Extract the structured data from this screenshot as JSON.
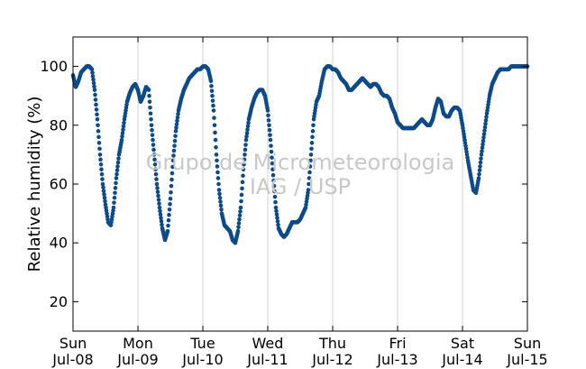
{
  "chart_data": {
    "type": "scatter",
    "title": "",
    "xlabel": "",
    "ylabel": "Relative humidity (%)",
    "ylim": [
      10,
      110
    ],
    "xlim": [
      "2013-07-08 00:00",
      "2013-07-15 00:00"
    ],
    "yticks": [
      20,
      40,
      60,
      80,
      100
    ],
    "xticks": [
      {
        "date": "2013-07-08",
        "day": "Sun",
        "label": "Jul-08"
      },
      {
        "date": "2013-07-09",
        "day": "Mon",
        "label": "Jul-09"
      },
      {
        "date": "2013-07-10",
        "day": "Tue",
        "label": "Jul-10"
      },
      {
        "date": "2013-07-11",
        "day": "Wed",
        "label": "Jul-11"
      },
      {
        "date": "2013-07-12",
        "day": "Thu",
        "label": "Jul-12"
      },
      {
        "date": "2013-07-13",
        "day": "Fri",
        "label": "Jul-13"
      },
      {
        "date": "2013-07-14",
        "day": "Sat",
        "label": "Jul-14"
      },
      {
        "date": "2013-07-15",
        "day": "Sun",
        "label": "Jul-15"
      }
    ],
    "grid": "vertical",
    "color": "#0d4a8a",
    "watermark": [
      "Grupo de Micrometeorologia",
      "IAG / USP"
    ],
    "series": [
      {
        "x": [
          "2013-07-08 00:00",
          "2013-07-08 01:00",
          "2013-07-08 02:00",
          "2013-07-08 03:00",
          "2013-07-08 04:00",
          "2013-07-08 05:00",
          "2013-07-08 06:00",
          "2013-07-08 07:00",
          "2013-07-08 08:00",
          "2013-07-08 09:00",
          "2013-07-08 10:00",
          "2013-07-08 11:00",
          "2013-07-08 12:00",
          "2013-07-08 13:00",
          "2013-07-08 14:00",
          "2013-07-08 15:00",
          "2013-07-08 16:00",
          "2013-07-08 17:00",
          "2013-07-08 18:00",
          "2013-07-08 19:00",
          "2013-07-08 20:00",
          "2013-07-08 21:00",
          "2013-07-08 22:00",
          "2013-07-08 23:00",
          "2013-07-09 00:00",
          "2013-07-09 01:00",
          "2013-07-09 02:00",
          "2013-07-09 03:00",
          "2013-07-09 04:00",
          "2013-07-09 05:00",
          "2013-07-09 06:00",
          "2013-07-09 07:00",
          "2013-07-09 08:00",
          "2013-07-09 09:00",
          "2013-07-09 10:00",
          "2013-07-09 11:00",
          "2013-07-09 12:00",
          "2013-07-09 13:00",
          "2013-07-09 14:00",
          "2013-07-09 15:00",
          "2013-07-09 16:00",
          "2013-07-09 17:00",
          "2013-07-09 18:00",
          "2013-07-09 19:00",
          "2013-07-09 20:00",
          "2013-07-09 21:00",
          "2013-07-09 22:00",
          "2013-07-09 23:00",
          "2013-07-10 00:00",
          "2013-07-10 01:00",
          "2013-07-10 02:00",
          "2013-07-10 03:00",
          "2013-07-10 04:00",
          "2013-07-10 05:00",
          "2013-07-10 06:00",
          "2013-07-10 07:00",
          "2013-07-10 08:00",
          "2013-07-10 09:00",
          "2013-07-10 10:00",
          "2013-07-10 11:00",
          "2013-07-10 12:00",
          "2013-07-10 13:00",
          "2013-07-10 14:00",
          "2013-07-10 15:00",
          "2013-07-10 16:00",
          "2013-07-10 17:00",
          "2013-07-10 18:00",
          "2013-07-10 19:00",
          "2013-07-10 20:00",
          "2013-07-10 21:00",
          "2013-07-10 22:00",
          "2013-07-10 23:00",
          "2013-07-11 00:00",
          "2013-07-11 01:00",
          "2013-07-11 02:00",
          "2013-07-11 03:00",
          "2013-07-11 04:00",
          "2013-07-11 05:00",
          "2013-07-11 06:00",
          "2013-07-11 07:00",
          "2013-07-11 08:00",
          "2013-07-11 09:00",
          "2013-07-11 10:00",
          "2013-07-11 11:00",
          "2013-07-11 12:00",
          "2013-07-11 13:00",
          "2013-07-11 14:00",
          "2013-07-11 15:00",
          "2013-07-11 16:00",
          "2013-07-11 17:00",
          "2013-07-11 18:00",
          "2013-07-11 19:00",
          "2013-07-11 20:00",
          "2013-07-11 21:00",
          "2013-07-11 22:00",
          "2013-07-11 23:00",
          "2013-07-12 00:00",
          "2013-07-12 01:00",
          "2013-07-12 02:00",
          "2013-07-12 03:00",
          "2013-07-12 04:00",
          "2013-07-12 05:00",
          "2013-07-12 06:00",
          "2013-07-12 07:00",
          "2013-07-12 08:00",
          "2013-07-12 09:00",
          "2013-07-12 10:00",
          "2013-07-12 11:00",
          "2013-07-12 12:00",
          "2013-07-12 13:00",
          "2013-07-12 14:00",
          "2013-07-12 15:00",
          "2013-07-12 16:00",
          "2013-07-12 17:00",
          "2013-07-12 18:00",
          "2013-07-12 19:00",
          "2013-07-12 20:00",
          "2013-07-12 21:00",
          "2013-07-12 22:00",
          "2013-07-12 23:00",
          "2013-07-13 00:00",
          "2013-07-13 01:00",
          "2013-07-13 02:00",
          "2013-07-13 03:00",
          "2013-07-13 04:00",
          "2013-07-13 05:00",
          "2013-07-13 06:00",
          "2013-07-13 07:00",
          "2013-07-13 08:00",
          "2013-07-13 09:00",
          "2013-07-13 10:00",
          "2013-07-13 11:00",
          "2013-07-13 12:00",
          "2013-07-13 13:00",
          "2013-07-13 14:00",
          "2013-07-13 15:00",
          "2013-07-13 16:00",
          "2013-07-13 17:00",
          "2013-07-13 18:00",
          "2013-07-13 19:00",
          "2013-07-13 20:00",
          "2013-07-13 21:00",
          "2013-07-13 22:00",
          "2013-07-13 23:00",
          "2013-07-14 00:00",
          "2013-07-14 01:00",
          "2013-07-14 02:00",
          "2013-07-14 03:00",
          "2013-07-14 04:00",
          "2013-07-14 05:00",
          "2013-07-14 06:00",
          "2013-07-14 07:00",
          "2013-07-14 08:00",
          "2013-07-14 09:00",
          "2013-07-14 10:00",
          "2013-07-14 11:00",
          "2013-07-14 12:00",
          "2013-07-14 13:00",
          "2013-07-14 14:00",
          "2013-07-14 15:00",
          "2013-07-14 16:00",
          "2013-07-14 17:00",
          "2013-07-14 18:00",
          "2013-07-14 19:00",
          "2013-07-14 20:00",
          "2013-07-14 21:00",
          "2013-07-14 22:00",
          "2013-07-14 23:00",
          "2013-07-15 00:00"
        ],
        "values": [
          97,
          93,
          95,
          98,
          99,
          100,
          100,
          99,
          92,
          82,
          70,
          60,
          53,
          47,
          46,
          52,
          62,
          70,
          75,
          82,
          88,
          91,
          93,
          94,
          92,
          88,
          90,
          93,
          92,
          80,
          70,
          60,
          52,
          45,
          41,
          44,
          55,
          68,
          78,
          85,
          89,
          92,
          94,
          96,
          97,
          98,
          99,
          99,
          100,
          100,
          99,
          95,
          85,
          70,
          58,
          50,
          46,
          45,
          44,
          41,
          40,
          44,
          52,
          65,
          75,
          82,
          86,
          89,
          91,
          92,
          92,
          90,
          85,
          75,
          63,
          52,
          45,
          43,
          42,
          43,
          45,
          47,
          47,
          47,
          48,
          50,
          52,
          58,
          70,
          82,
          88,
          90,
          95,
          99,
          100,
          100,
          99,
          99,
          98,
          96,
          95,
          94,
          92,
          92,
          93,
          94,
          95,
          96,
          95,
          94,
          93,
          94,
          94,
          93,
          91,
          90,
          90,
          89,
          86,
          84,
          81,
          80,
          79,
          79,
          79,
          79,
          79,
          80,
          81,
          82,
          81,
          80,
          80,
          82,
          86,
          89,
          88,
          84,
          83,
          83,
          85,
          86,
          86,
          85,
          80,
          74,
          68,
          63,
          58,
          57,
          62,
          70,
          77,
          84,
          90,
          94,
          96,
          98,
          99,
          99,
          99,
          99,
          100,
          100,
          100,
          100,
          100,
          100,
          100
        ]
      }
    ]
  }
}
